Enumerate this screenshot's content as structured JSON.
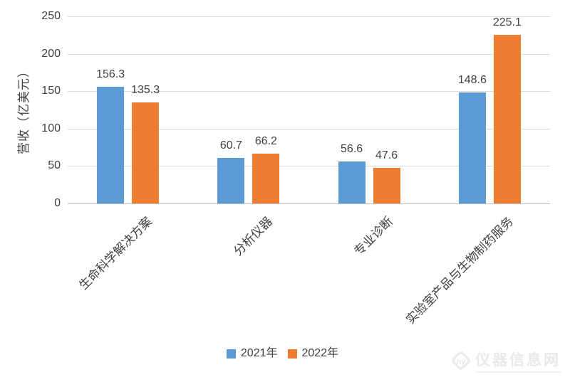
{
  "chart_data": {
    "type": "bar",
    "ylabel": "营收（亿美元）",
    "ylim": [
      0,
      250
    ],
    "yticks": [
      0,
      50,
      100,
      150,
      200,
      250
    ],
    "grid": true,
    "legend_position": "bottom",
    "data_labels": true,
    "categories": [
      "生命科学解决方案",
      "分析仪器",
      "专业诊断",
      "实验室产品与生物制药服务"
    ],
    "series": [
      {
        "name": "2021年",
        "color": "#5B9BD5",
        "values": [
          156.3,
          60.7,
          56.6,
          148.6
        ]
      },
      {
        "name": "2022年",
        "color": "#ED7D31",
        "values": [
          135.3,
          66.2,
          47.6,
          225.1
        ]
      }
    ]
  },
  "colors": {
    "gridline": "#D9D9D9",
    "baseline": "#BFBFBF",
    "axis_text": "#404040"
  },
  "watermark": {
    "text": "仪器信息网"
  }
}
